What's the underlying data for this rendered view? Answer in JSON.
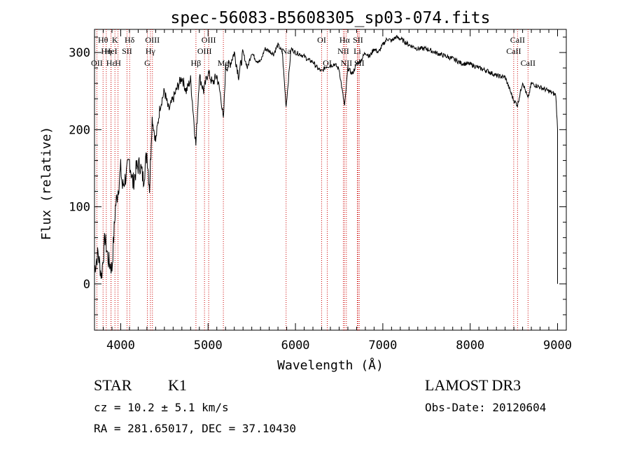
{
  "chart_data": {
    "type": "line",
    "title": "spec-56083-B5608305_sp03-074.fits",
    "xlabel": "Wavelength (Å)",
    "ylabel": "Flux (relative)",
    "xlim": [
      3700,
      9100
    ],
    "ylim": [
      -60,
      330
    ],
    "x_ticks": [
      4000,
      5000,
      6000,
      7000,
      8000,
      9000
    ],
    "y_ticks": [
      0,
      100,
      200,
      300
    ],
    "grid": false,
    "line_color": "#000000",
    "marker_color": "#cc0000",
    "series": [
      {
        "name": "flux",
        "x": [
          3700,
          3740,
          3780,
          3820,
          3860,
          3900,
          3940,
          3980,
          4000,
          4020,
          4060,
          4100,
          4140,
          4180,
          4220,
          4260,
          4300,
          4330,
          4360,
          4400,
          4450,
          4500,
          4550,
          4600,
          4650,
          4700,
          4750,
          4800,
          4860,
          4900,
          4950,
          5000,
          5050,
          5100,
          5150,
          5175,
          5200,
          5250,
          5300,
          5350,
          5400,
          5450,
          5500,
          5550,
          5600,
          5650,
          5700,
          5750,
          5800,
          5850,
          5893,
          5950,
          6000,
          6050,
          6100,
          6150,
          6200,
          6250,
          6300,
          6350,
          6400,
          6450,
          6500,
          6563,
          6600,
          6650,
          6700,
          6750,
          6800,
          6850,
          6900,
          6950,
          7000,
          7050,
          7100,
          7150,
          7200,
          7300,
          7400,
          7500,
          7600,
          7700,
          7800,
          7900,
          8000,
          8100,
          8200,
          8300,
          8400,
          8498,
          8542,
          8600,
          8662,
          8700,
          8800,
          8900,
          8980,
          9000
        ],
        "values": [
          20,
          40,
          10,
          60,
          30,
          20,
          100,
          130,
          150,
          125,
          140,
          160,
          130,
          150,
          155,
          135,
          170,
          125,
          215,
          185,
          230,
          250,
          225,
          240,
          255,
          268,
          250,
          265,
          180,
          270,
          250,
          275,
          260,
          270,
          240,
          210,
          280,
          285,
          300,
          270,
          300,
          280,
          300,
          290,
          288,
          305,
          302,
          298,
          310,
          300,
          230,
          305,
          300,
          298,
          295,
          290,
          288,
          280,
          275,
          282,
          283,
          285,
          278,
          230,
          280,
          272,
          285,
          290,
          300,
          295,
          305,
          300,
          310,
          318,
          315,
          320,
          318,
          310,
          305,
          305,
          300,
          296,
          292,
          286,
          285,
          280,
          276,
          270,
          268,
          238,
          232,
          262,
          240,
          260,
          255,
          250,
          245,
          200
        ]
      }
    ],
    "line_markers": [
      {
        "label": "Hθ",
        "wavelength": 3798,
        "row": 1
      },
      {
        "label": "OII",
        "wavelength": 3727,
        "row": 3
      },
      {
        "label": "Hη",
        "wavelength": 3835,
        "row": 2
      },
      {
        "label": "Hε",
        "wavelength": 3889,
        "row": 3
      },
      {
        "label": "HeI",
        "wavelength": 3889,
        "row": 2
      },
      {
        "label": "K",
        "wavelength": 3934,
        "row": 1
      },
      {
        "label": "SII",
        "wavelength": 4072,
        "row": 2
      },
      {
        "label": "H",
        "wavelength": 3969,
        "row": 3
      },
      {
        "label": "Hδ",
        "wavelength": 4102,
        "row": 1
      },
      {
        "label": "OIII",
        "wavelength": 4363,
        "row": 1
      },
      {
        "label": "Hγ",
        "wavelength": 4340,
        "row": 2
      },
      {
        "label": "G",
        "wavelength": 4305,
        "row": 3
      },
      {
        "label": "OIII",
        "wavelength": 5007,
        "row": 1
      },
      {
        "label": "OIII",
        "wavelength": 4959,
        "row": 2
      },
      {
        "label": "Hβ",
        "wavelength": 4861,
        "row": 3
      },
      {
        "label": "Mg",
        "wavelength": 5175,
        "row": 3
      },
      {
        "label": "Na",
        "wavelength": 5893,
        "row": 2
      },
      {
        "label": "OI",
        "wavelength": 6300,
        "row": 1
      },
      {
        "label": "OI",
        "wavelength": 6364,
        "row": 3
      },
      {
        "label": "Hα",
        "wavelength": 6563,
        "row": 1
      },
      {
        "label": "NII",
        "wavelength": 6548,
        "row": 2
      },
      {
        "label": "NII",
        "wavelength": 6583,
        "row": 3
      },
      {
        "label": "SII",
        "wavelength": 6716,
        "row": 1
      },
      {
        "label": "Li",
        "wavelength": 6708,
        "row": 2
      },
      {
        "label": "SII",
        "wavelength": 6731,
        "row": 3
      },
      {
        "label": "CaII",
        "wavelength": 8542,
        "row": 1
      },
      {
        "label": "CaII",
        "wavelength": 8498,
        "row": 2
      },
      {
        "label": "CaII",
        "wavelength": 8662,
        "row": 3
      }
    ]
  },
  "info": {
    "object_class": "STAR",
    "subclass": "K1",
    "survey": "LAMOST DR3",
    "redshift": "cz = 10.2 ± 5.1 km/s",
    "obs_date": "Obs-Date: 20120604",
    "coords": "RA = 281.65017, DEC =  37.10430"
  }
}
